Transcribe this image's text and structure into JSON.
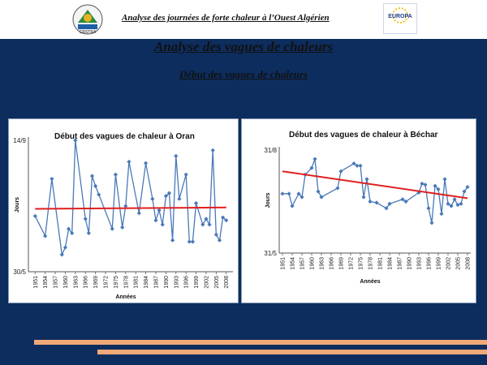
{
  "header": {
    "title": "Analyse des journées de forte chaleur à l’Ouest Algérien",
    "logo_left_text": "CRSTRA",
    "logo_right_text": "EUROPA"
  },
  "main_title": "Analyse des vagues de chaleurs",
  "subtitle": "Début des vagues de chaleurs",
  "colors": {
    "background": "#0d2d5e",
    "series": "#4a79b8",
    "trend": "#e02020",
    "stripe": "#f0a978"
  },
  "chart_data": [
    {
      "type": "line",
      "title": "Début des vagues de chaleur à Oran",
      "xlabel": "Années",
      "ylabel": "Jours",
      "ytick_labels": [
        "14/9",
        "30/5"
      ],
      "x": [
        1951,
        1954,
        1956,
        1959,
        1960,
        1961,
        1962,
        1963,
        1966,
        1967,
        1968,
        1969,
        1970,
        1974,
        1975,
        1977,
        1978,
        1979,
        1982,
        1984,
        1986,
        1987,
        1988,
        1989,
        1990,
        1991,
        1992,
        1993,
        1994,
        1996,
        1997,
        1998,
        1999,
        2001,
        2002,
        2003,
        2004,
        2005,
        2006,
        2007,
        2008
      ],
      "values": [
        55,
        41,
        81,
        28,
        33,
        46,
        43,
        108,
        53,
        43,
        83,
        76,
        70,
        46,
        84,
        47,
        62,
        93,
        57,
        92,
        67,
        52,
        59,
        49,
        69,
        71,
        38,
        97,
        67,
        84,
        37,
        37,
        64,
        49,
        53,
        49,
        101,
        42,
        38,
        54,
        52
      ],
      "ylim": [
        16,
        108
      ],
      "trend": [
        60,
        61
      ],
      "series": [
        {
          "values_ref": "values"
        }
      ],
      "xtick_labels": [
        "1951",
        "1954",
        "1957",
        "1960",
        "1963",
        "1966",
        "1969",
        "1972",
        "1975",
        "1978",
        "1981",
        "1984",
        "1987",
        "1990",
        "1993",
        "1996",
        "1999",
        "2002",
        "2005",
        "2008"
      ]
    },
    {
      "type": "line",
      "title": "Début des vagues de chaleur à Béchar",
      "xlabel": "Années",
      "ylabel": "Jours",
      "ytick_labels": [
        "31/8",
        "31/5"
      ],
      "x": [
        1951,
        1953,
        1954,
        1956,
        1957,
        1958,
        1960,
        1961,
        1962,
        1963,
        1968,
        1969,
        1973,
        1974,
        1975,
        1976,
        1977,
        1978,
        1980,
        1983,
        1984,
        1988,
        1989,
        1993,
        1994,
        1995,
        1996,
        1997,
        1998,
        1999,
        2000,
        2001,
        2002,
        2003,
        2004,
        2005,
        2006,
        2007,
        2008
      ],
      "values": [
        53,
        53,
        42,
        53,
        50,
        70,
        76,
        84,
        55,
        50,
        58,
        73,
        80,
        78,
        78,
        50,
        66,
        46,
        45,
        40,
        44,
        48,
        46,
        54,
        62,
        61,
        40,
        27,
        60,
        57,
        35,
        66,
        44,
        42,
        48,
        43,
        44,
        55,
        59
      ],
      "ylim": [
        0,
        92
      ],
      "trend": [
        73,
        49
      ],
      "xtick_labels": [
        "1951",
        "1954",
        "1957",
        "1960",
        "1963",
        "1966",
        "1969",
        "1972",
        "1975",
        "1978",
        "1981",
        "1984",
        "1987",
        "1990",
        "1993",
        "1996",
        "1999",
        "2002",
        "2005",
        "2008"
      ]
    }
  ]
}
